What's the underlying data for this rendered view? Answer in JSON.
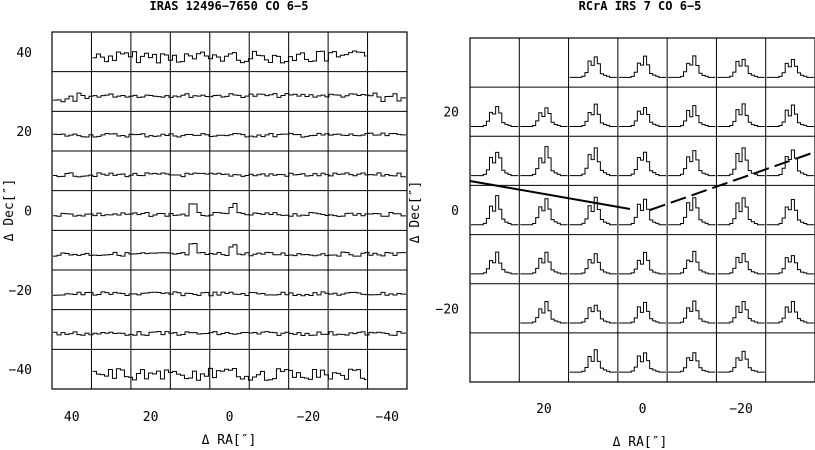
{
  "chart_data": [
    {
      "type": "spectral-map",
      "title": "IRAS 12496−7650 CO 6−5",
      "xlabel": "Δ RA[″]",
      "ylabel": "Δ Dec[″]",
      "x_ticks": [
        "40",
        "20",
        "0",
        "−20",
        "−40"
      ],
      "y_ticks": [
        "40",
        "20",
        "0",
        "−20",
        "−40"
      ],
      "xlim": [
        45,
        -45
      ],
      "ylim": [
        -45,
        45
      ],
      "grid": {
        "cols": 9,
        "rows": 9,
        "spacing_arcsec": 10
      },
      "line_profile": "noise",
      "peak_offsets": [
        [
          -10,
          -10
        ],
        [
          0,
          -10
        ],
        [
          10,
          -10
        ],
        [
          -10,
          0
        ],
        [
          0,
          0
        ],
        [
          10,
          0
        ]
      ]
    },
    {
      "type": "spectral-map",
      "title": "RCrA IRS 7 CO 6−5",
      "xlabel": "Δ RA[″]",
      "ylabel": "Δ Dec[″]",
      "x_ticks": [
        "20",
        "0",
        "−20"
      ],
      "y_ticks": [
        "20",
        "0",
        "−20"
      ],
      "xlim": [
        35,
        -35
      ],
      "ylim": [
        -35,
        35
      ],
      "grid": {
        "cols": 7,
        "rows": 7,
        "spacing_arcsec": 10
      },
      "line_profile": "double-peaked",
      "missing_cells": [
        [
          30,
          30
        ],
        [
          20,
          30
        ],
        [
          30,
          -20
        ],
        [
          30,
          -30
        ],
        [
          20,
          -30
        ],
        [
          -30,
          -30
        ]
      ],
      "outflow_axis": {
        "solid": "red-shifted lobe to east",
        "dashed": "blue-shifted lobe to west"
      }
    }
  ]
}
